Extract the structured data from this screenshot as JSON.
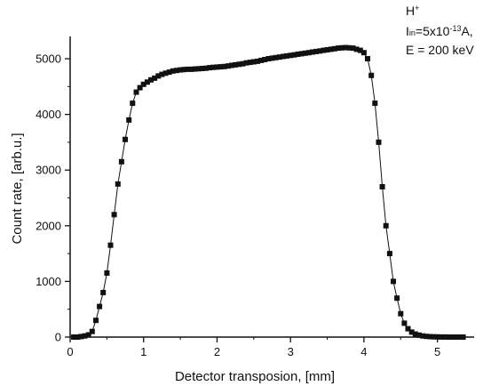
{
  "annotation": {
    "ion": "H",
    "ion_charge": "+",
    "current_symbol": "I",
    "current_sub": "in",
    "current_eq": "=5x10",
    "current_exp": "-13",
    "current_unit": "A,",
    "energy": "E = 200 keV"
  },
  "chart_data": {
    "type": "scatter",
    "title": "",
    "xlabel": "Detector transposion, [mm]",
    "ylabel": "Count rate, [arb.u.]",
    "xlim": [
      0,
      5.5
    ],
    "ylim": [
      0,
      5400
    ],
    "xticks": [
      0,
      1,
      2,
      3,
      4,
      5
    ],
    "yticks": [
      0,
      1000,
      2000,
      3000,
      4000,
      5000
    ],
    "grid": false,
    "marker": "square",
    "connecting_line": true,
    "colors": {
      "marker": "#111111",
      "line": "#111111",
      "axis": "#111111"
    },
    "x": [
      0.05,
      0.1,
      0.15,
      0.2,
      0.25,
      0.3,
      0.35,
      0.4,
      0.45,
      0.5,
      0.55,
      0.6,
      0.65,
      0.7,
      0.75,
      0.8,
      0.85,
      0.9,
      0.95,
      1.0,
      1.05,
      1.1,
      1.15,
      1.2,
      1.25,
      1.3,
      1.35,
      1.4,
      1.45,
      1.5,
      1.55,
      1.6,
      1.65,
      1.7,
      1.75,
      1.8,
      1.85,
      1.9,
      1.95,
      2.0,
      2.05,
      2.1,
      2.15,
      2.2,
      2.25,
      2.3,
      2.35,
      2.4,
      2.45,
      2.5,
      2.55,
      2.6,
      2.65,
      2.7,
      2.75,
      2.8,
      2.85,
      2.9,
      2.95,
      3.0,
      3.05,
      3.1,
      3.15,
      3.2,
      3.25,
      3.3,
      3.35,
      3.4,
      3.45,
      3.5,
      3.55,
      3.6,
      3.65,
      3.7,
      3.75,
      3.8,
      3.85,
      3.9,
      3.95,
      4.0,
      4.05,
      4.1,
      4.15,
      4.2,
      4.25,
      4.3,
      4.35,
      4.4,
      4.45,
      4.5,
      4.55,
      4.6,
      4.65,
      4.7,
      4.75,
      4.8,
      4.85,
      4.9,
      4.95,
      5.0,
      5.05,
      5.1,
      5.15,
      5.2,
      5.25,
      5.3,
      5.35
    ],
    "y": [
      0,
      0,
      10,
      20,
      40,
      100,
      300,
      550,
      800,
      1150,
      1650,
      2200,
      2750,
      3150,
      3550,
      3900,
      4200,
      4400,
      4480,
      4540,
      4580,
      4620,
      4650,
      4690,
      4720,
      4740,
      4760,
      4780,
      4790,
      4800,
      4805,
      4810,
      4810,
      4815,
      4820,
      4825,
      4830,
      4840,
      4845,
      4850,
      4855,
      4860,
      4870,
      4880,
      4890,
      4900,
      4910,
      4925,
      4935,
      4945,
      4955,
      4970,
      4985,
      5000,
      5010,
      5020,
      5030,
      5040,
      5050,
      5060,
      5070,
      5080,
      5090,
      5100,
      5110,
      5120,
      5130,
      5140,
      5150,
      5160,
      5170,
      5180,
      5190,
      5195,
      5200,
      5195,
      5190,
      5170,
      5150,
      5110,
      5000,
      4700,
      4200,
      3500,
      2700,
      2000,
      1500,
      1000,
      700,
      420,
      250,
      150,
      90,
      55,
      35,
      20,
      12,
      8,
      5,
      3,
      2,
      1,
      0,
      0,
      0,
      0,
      0
    ]
  }
}
